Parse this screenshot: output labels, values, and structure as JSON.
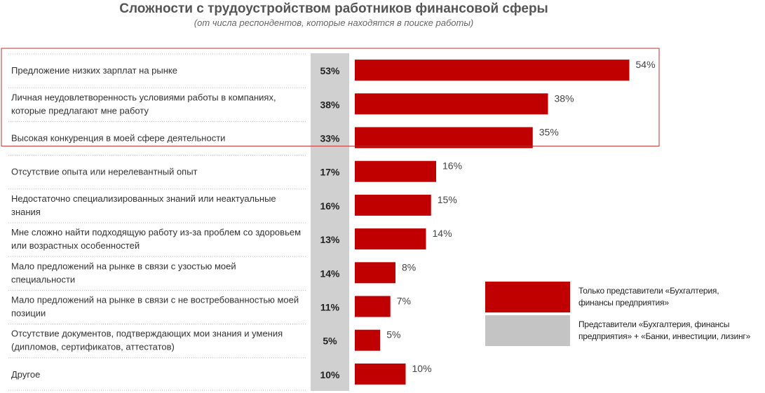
{
  "title": "Сложности с трудоустройством работников финансовой сферы",
  "subtitle": "(от числа респондентов, которые находятся в поиске работы)",
  "chart_data": {
    "type": "bar",
    "orientation": "horizontal",
    "title": "Сложности с трудоустройством работников финансовой сферы",
    "subtitle": "(от числа респондентов, которые находятся в поиске работы)",
    "categories": [
      [
        "Предложение низких зарплат на рынке"
      ],
      [
        "Личная неудовлетворенность условиями работы в компаниях,",
        "которые предлагают мне работу"
      ],
      [
        "Высокая конкуренция в моей сфере деятельности"
      ],
      [
        "Отсутствие  опыта или нерелевантный опыт"
      ],
      [
        "Недостаточно специализированных знаний или неактуальные",
        "знания"
      ],
      [
        "Мне сложно найти подходящую работу из-за проблем со здоровьем",
        "или возрастных особенностей"
      ],
      [
        "Мало предложений на рынке в связи с узостью моей",
        "специальности"
      ],
      [
        "Мало предложений на рынке в связи с не востребованностью моей",
        "позиции"
      ],
      [
        "Отсутствие  документов, подтверждающих мои знания и умения",
        "(дипломов, сертификатов, аттестатов)"
      ],
      [
        "Другое"
      ]
    ],
    "series": [
      {
        "name": "Представители «Бухгалтерия, финансы предприятия» + «Банки, инвестиции, лизинг»",
        "values": [
          53,
          38,
          33,
          17,
          16,
          13,
          14,
          11,
          5,
          10
        ],
        "labels": [
          "53%",
          "38%",
          "33%",
          "17%",
          "16%",
          "13%",
          "14%",
          "11%",
          "5%",
          "10%"
        ],
        "color": "#d0d0d0"
      },
      {
        "name": "Только представители «Бухгалтерия, финансы предприятия»",
        "values": [
          54,
          38,
          35,
          16,
          15,
          14,
          8,
          7,
          5,
          10
        ],
        "labels": [
          "54%",
          "38%",
          "35%",
          "16%",
          "15%",
          "14%",
          "8%",
          "7%",
          "5%",
          "10%"
        ],
        "color": "#c00000"
      }
    ],
    "xlim": [
      0,
      60
    ],
    "highlight": {
      "rows": [
        0,
        1,
        2
      ],
      "color": "#c0302f"
    }
  },
  "legend": [
    {
      "lines": [
        "Только представители «Бухгалтерия,",
        "финансы предприятия»"
      ],
      "color": "#c00000"
    },
    {
      "lines": [
        "Представители «Бухгалтерия, финансы",
        "предприятия» + «Банки, инвестиции, лизинг»"
      ],
      "color": "#c4c4c4"
    }
  ]
}
